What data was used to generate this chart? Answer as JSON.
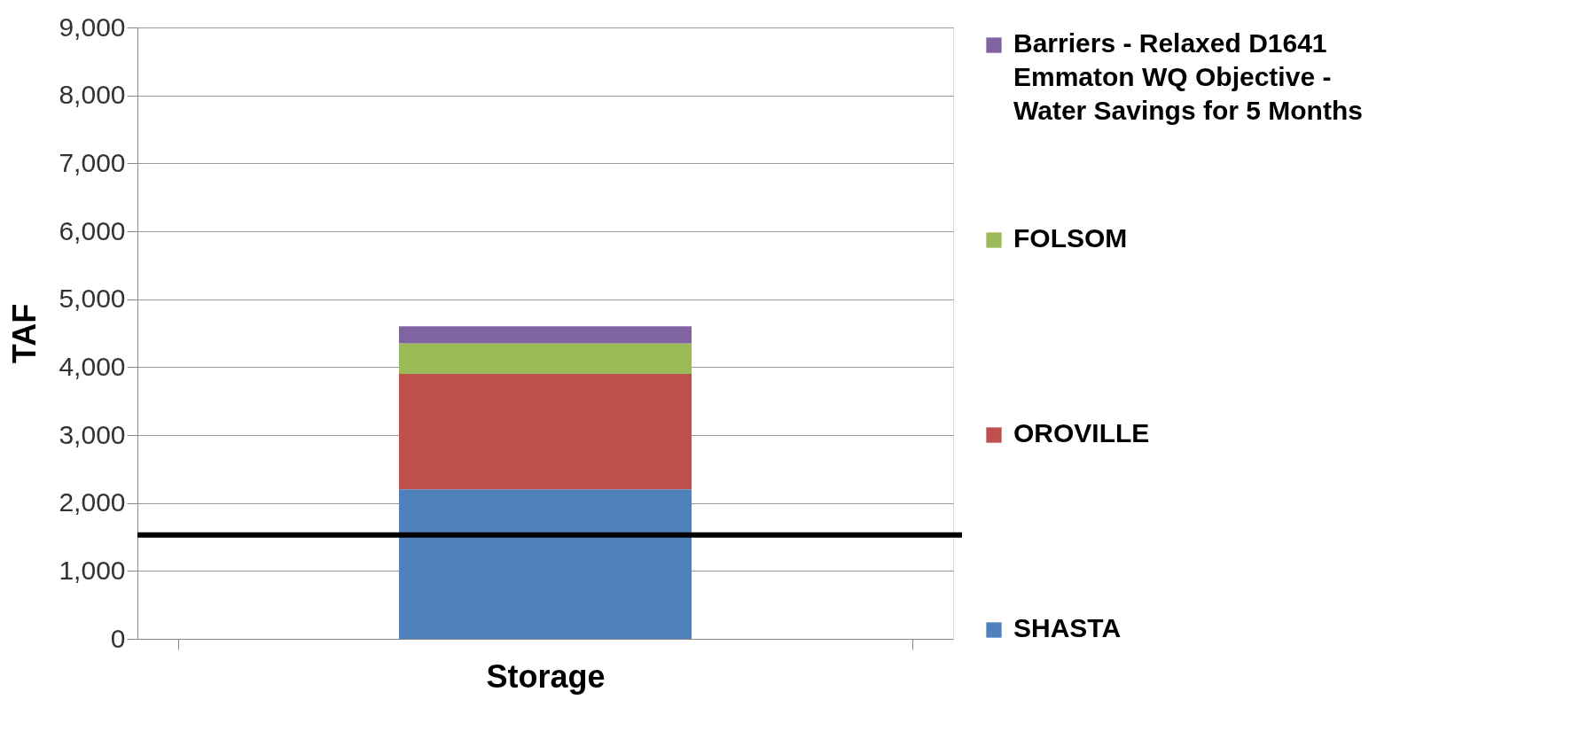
{
  "chart_data": {
    "type": "bar",
    "stacked": true,
    "ylabel": "TAF",
    "categories": [
      "Storage"
    ],
    "series": [
      {
        "name": "SHASTA",
        "color": "#4f81bd",
        "values": [
          2200
        ]
      },
      {
        "name": "OROVILLE",
        "color": "#c0504d",
        "values": [
          1700
        ]
      },
      {
        "name": "FOLSOM",
        "color": "#9bbb59",
        "values": [
          450
        ]
      },
      {
        "name": "Barriers - Relaxed D1641 Emmaton WQ Objective - Water Savings for 5 Months",
        "color": "#8064a2",
        "values": [
          250
        ]
      }
    ],
    "ylim": [
      0,
      9000
    ],
    "yticks": [
      0,
      {
        "value": 1000,
        "label": "1,000"
      },
      {
        "value": 2000,
        "label": "2,000"
      },
      {
        "value": 3000,
        "label": "3,000"
      },
      {
        "value": 4000,
        "label": "4,000"
      },
      {
        "value": 5000,
        "label": "5,000"
      },
      {
        "value": 6000,
        "label": "6,000"
      },
      {
        "value": 7000,
        "label": "7,000"
      },
      {
        "value": 8000,
        "label": "8,000"
      },
      {
        "value": 9000,
        "label": "9,000"
      }
    ],
    "ref_lines": [
      {
        "axis": "y",
        "value": 1530,
        "color": "#000000"
      }
    ],
    "grid": "y",
    "legend": "right"
  }
}
